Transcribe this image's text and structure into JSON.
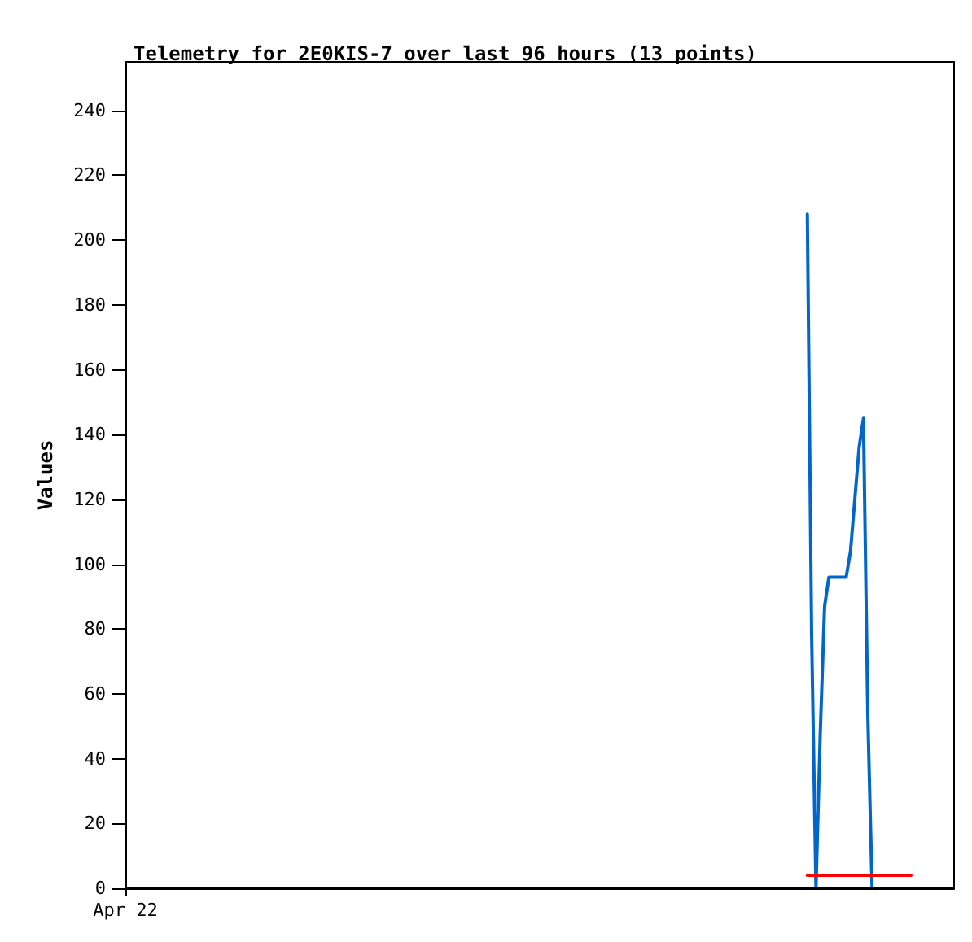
{
  "chart_data": {
    "type": "line",
    "title": "Telemetry for 2E0KIS-7 over last 96 hours (13 points)",
    "ylabel": "Values",
    "categories": [
      "Apr 22",
      null,
      null,
      null,
      null,
      null,
      null,
      null,
      null,
      null,
      null,
      null,
      null,
      null,
      null,
      null,
      null,
      null,
      null,
      null,
      null,
      null,
      null,
      null,
      null,
      null,
      null,
      null,
      null,
      null,
      null,
      null,
      null,
      null,
      null,
      null,
      null,
      null,
      null,
      null,
      null,
      null,
      null,
      null,
      null,
      null,
      null,
      null,
      null,
      null,
      null,
      null,
      null,
      null,
      null,
      null,
      null,
      null,
      null,
      null,
      null,
      null,
      null,
      null,
      null,
      null,
      null,
      null,
      null,
      null,
      null,
      null,
      null,
      null,
      null,
      null,
      null,
      null,
      null,
      null,
      null,
      null,
      null,
      null,
      null,
      null,
      null,
      null,
      null,
      null,
      null,
      null,
      null,
      null,
      null,
      null,
      null,
      null,
      null,
      null,
      null,
      null,
      null,
      null,
      null,
      null,
      null,
      null,
      null,
      null,
      null,
      null,
      null,
      null,
      null,
      null,
      null,
      null,
      null,
      null,
      null,
      null,
      null,
      null,
      null,
      null,
      null,
      null,
      null,
      null,
      null,
      null,
      null,
      null,
      null,
      null,
      null,
      null,
      null,
      null,
      null,
      null,
      null,
      null,
      null,
      null,
      null,
      null,
      null,
      null,
      null,
      null,
      null,
      null,
      null,
      null,
      null,
      null,
      null,
      null,
      null,
      null,
      null,
      null,
      null,
      null,
      null,
      null,
      null,
      null,
      null,
      null,
      null,
      null,
      null,
      null,
      null,
      null,
      null,
      null,
      null,
      null,
      null,
      null,
      null,
      null,
      null,
      null,
      null,
      null,
      null,
      null,
      null
    ],
    "ylim": [
      0,
      255
    ],
    "yticks": [
      0,
      20,
      40,
      60,
      80,
      100,
      120,
      140,
      160,
      180,
      200,
      220,
      240
    ],
    "grid": false,
    "marker": "none",
    "line_style": "solid",
    "series": [
      {
        "color": "#0066cc",
        "values": [
          null,
          null,
          null,
          null,
          null,
          null,
          null,
          null,
          null,
          null,
          null,
          null,
          null,
          null,
          null,
          null,
          null,
          null,
          null,
          null,
          null,
          null,
          null,
          null,
          null,
          null,
          null,
          null,
          null,
          null,
          null,
          null,
          null,
          null,
          null,
          null,
          null,
          null,
          null,
          null,
          null,
          null,
          null,
          null,
          null,
          null,
          null,
          null,
          null,
          null,
          null,
          null,
          null,
          null,
          null,
          null,
          null,
          null,
          null,
          null,
          null,
          null,
          null,
          null,
          null,
          null,
          null,
          null,
          null,
          null,
          null,
          null,
          null,
          null,
          null,
          null,
          null,
          null,
          null,
          null,
          null,
          null,
          null,
          null,
          null,
          null,
          null,
          null,
          null,
          null,
          null,
          null,
          null,
          null,
          null,
          null,
          null,
          null,
          null,
          null,
          null,
          null,
          null,
          null,
          null,
          null,
          null,
          null,
          null,
          null,
          null,
          null,
          null,
          null,
          null,
          null,
          null,
          null,
          null,
          null,
          null,
          null,
          null,
          null,
          null,
          null,
          null,
          null,
          null,
          null,
          null,
          null,
          null,
          null,
          null,
          null,
          null,
          null,
          null,
          null,
          null,
          null,
          null,
          null,
          null,
          null,
          null,
          null,
          null,
          null,
          null,
          null,
          null,
          null,
          null,
          null,
          null,
          null,
          208,
          78,
          0,
          48,
          87,
          96,
          96,
          96,
          96,
          96,
          104,
          120,
          136,
          145,
          54,
          0,
          null,
          null,
          null,
          null,
          null,
          null,
          null,
          null,
          null,
          null,
          null,
          null,
          null,
          null,
          null,
          null,
          null,
          null,
          null
        ]
      },
      {
        "color": "#ff0000",
        "values": [
          null,
          null,
          null,
          null,
          null,
          null,
          null,
          null,
          null,
          null,
          null,
          null,
          null,
          null,
          null,
          null,
          null,
          null,
          null,
          null,
          null,
          null,
          null,
          null,
          null,
          null,
          null,
          null,
          null,
          null,
          null,
          null,
          null,
          null,
          null,
          null,
          null,
          null,
          null,
          null,
          null,
          null,
          null,
          null,
          null,
          null,
          null,
          null,
          null,
          null,
          null,
          null,
          null,
          null,
          null,
          null,
          null,
          null,
          null,
          null,
          null,
          null,
          null,
          null,
          null,
          null,
          null,
          null,
          null,
          null,
          null,
          null,
          null,
          null,
          null,
          null,
          null,
          null,
          null,
          null,
          null,
          null,
          null,
          null,
          null,
          null,
          null,
          null,
          null,
          null,
          null,
          null,
          null,
          null,
          null,
          null,
          null,
          null,
          null,
          null,
          null,
          null,
          null,
          null,
          null,
          null,
          null,
          null,
          null,
          null,
          null,
          null,
          null,
          null,
          null,
          null,
          null,
          null,
          null,
          null,
          null,
          null,
          null,
          null,
          null,
          null,
          null,
          null,
          null,
          null,
          null,
          null,
          null,
          null,
          null,
          null,
          null,
          null,
          null,
          null,
          null,
          null,
          null,
          null,
          null,
          null,
          null,
          null,
          null,
          null,
          null,
          null,
          null,
          null,
          null,
          null,
          null,
          null,
          4,
          4,
          4,
          4,
          4,
          4,
          4,
          4,
          4,
          4,
          4,
          4,
          4,
          4,
          4,
          4,
          4,
          4,
          4,
          4,
          4,
          4,
          4,
          4,
          4,
          null,
          null,
          null,
          null,
          null,
          null,
          null,
          null,
          null,
          null
        ]
      },
      {
        "color": "#000000",
        "values": [
          null,
          null,
          null,
          null,
          null,
          null,
          null,
          null,
          null,
          null,
          null,
          null,
          null,
          null,
          null,
          null,
          null,
          null,
          null,
          null,
          null,
          null,
          null,
          null,
          null,
          null,
          null,
          null,
          null,
          null,
          null,
          null,
          null,
          null,
          null,
          null,
          null,
          null,
          null,
          null,
          null,
          null,
          null,
          null,
          null,
          null,
          null,
          null,
          null,
          null,
          null,
          null,
          null,
          null,
          null,
          null,
          null,
          null,
          null,
          null,
          null,
          null,
          null,
          null,
          null,
          null,
          null,
          null,
          null,
          null,
          null,
          null,
          null,
          null,
          null,
          null,
          null,
          null,
          null,
          null,
          null,
          null,
          null,
          null,
          null,
          null,
          null,
          null,
          null,
          null,
          null,
          null,
          null,
          null,
          null,
          null,
          null,
          null,
          null,
          null,
          null,
          null,
          null,
          null,
          null,
          null,
          null,
          null,
          null,
          null,
          null,
          null,
          null,
          null,
          null,
          null,
          null,
          null,
          null,
          null,
          null,
          null,
          null,
          null,
          null,
          null,
          null,
          null,
          null,
          null,
          null,
          null,
          null,
          null,
          null,
          null,
          null,
          null,
          null,
          null,
          null,
          null,
          null,
          null,
          null,
          null,
          null,
          null,
          null,
          null,
          null,
          null,
          null,
          null,
          null,
          null,
          null,
          null,
          0,
          0,
          0,
          0,
          0,
          0,
          0,
          0,
          0,
          0,
          0,
          0,
          0,
          0,
          0,
          0,
          0,
          0,
          0,
          0,
          0,
          0,
          0,
          0,
          0,
          null,
          null,
          null,
          null,
          null,
          null,
          null,
          null,
          null,
          null
        ]
      }
    ]
  }
}
